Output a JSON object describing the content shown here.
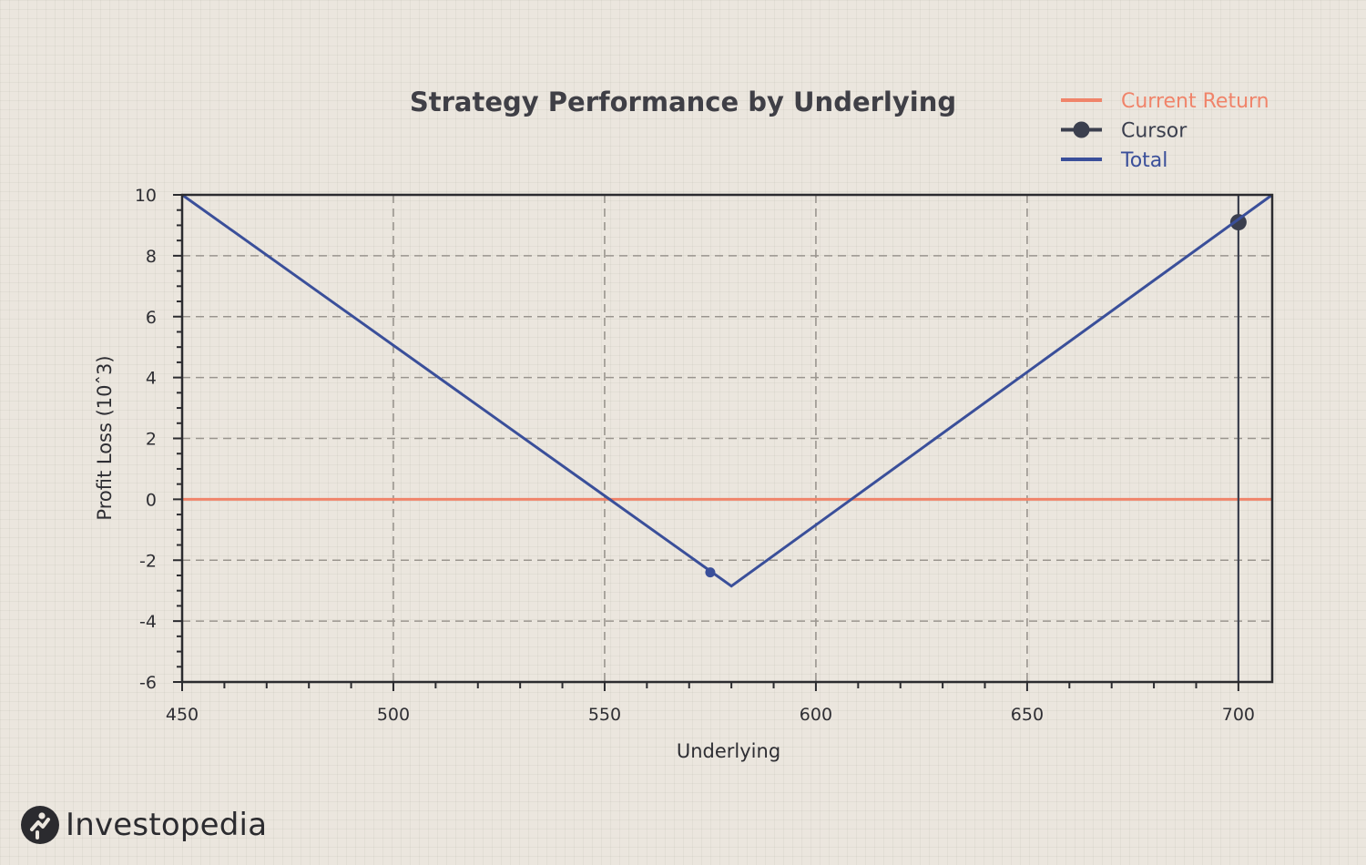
{
  "chart_data": {
    "type": "line",
    "title": "Strategy Performance by Underlying",
    "xlabel": "Underlying",
    "ylabel": "Profit Loss (10ˆ3)",
    "xlim": [
      450,
      708
    ],
    "ylim": [
      -6,
      10
    ],
    "xticks": [
      450,
      500,
      550,
      600,
      650,
      700
    ],
    "yticks": [
      10,
      8,
      6,
      4,
      2,
      0,
      -2,
      -4,
      -6
    ],
    "grid": true,
    "legend_position": "top-right",
    "series": [
      {
        "name": "Current Return",
        "color": "#f0846a",
        "x": [
          450,
          708
        ],
        "y": [
          0,
          0
        ]
      },
      {
        "name": "Cursor",
        "color": "#3b3f4e",
        "x": [
          700,
          700
        ],
        "y": [
          -6,
          10
        ],
        "marker": {
          "x": 700,
          "y": 9.1
        }
      },
      {
        "name": "Total",
        "color": "#3a4f9a",
        "x": [
          450,
          580,
          708
        ],
        "y": [
          10,
          -2.85,
          10
        ],
        "marker": {
          "x": 575,
          "y": -2.4
        }
      }
    ]
  },
  "brand": {
    "name": "Investopedia",
    "logo_icon": "investopedia-logo-icon"
  }
}
